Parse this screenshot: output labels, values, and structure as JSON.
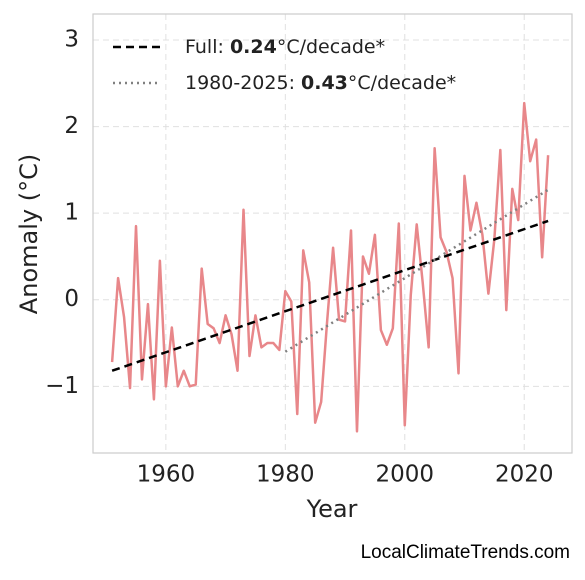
{
  "chart_data": {
    "type": "line",
    "xlabel": "Year",
    "ylabel": "Anomaly (°C)",
    "source": "LocalClimateTrends.com",
    "xlim": [
      1947.8,
      2028.0
    ],
    "ylim": [
      -1.77,
      3.3
    ],
    "xticks": [
      1960,
      1980,
      2000,
      2020
    ],
    "yticks": [
      {
        "value": -1,
        "label": "−1"
      },
      0,
      1,
      2,
      3
    ],
    "grid": true,
    "legend": "upper left",
    "x": [
      1951,
      1952,
      1953,
      1954,
      1955,
      1956,
      1957,
      1958,
      1959,
      1960,
      1961,
      1962,
      1963,
      1964,
      1965,
      1966,
      1967,
      1968,
      1969,
      1970,
      1971,
      1972,
      1973,
      1974,
      1975,
      1976,
      1977,
      1978,
      1979,
      1980,
      1981,
      1982,
      1983,
      1984,
      1985,
      1986,
      1987,
      1988,
      1989,
      1990,
      1991,
      1992,
      1993,
      1994,
      1995,
      1996,
      1997,
      1998,
      1999,
      2000,
      2001,
      2002,
      2003,
      2004,
      2005,
      2006,
      2007,
      2008,
      2009,
      2010,
      2011,
      2012,
      2013,
      2014,
      2015,
      2016,
      2017,
      2018,
      2019,
      2020,
      2021,
      2022,
      2023,
      2024
    ],
    "series": [
      {
        "color": "#e8878a",
        "values": [
          -0.72,
          0.25,
          -0.2,
          -1.02,
          0.85,
          -0.92,
          -0.05,
          -1.15,
          0.45,
          -1.0,
          -0.32,
          -1.0,
          -0.82,
          -1.0,
          -0.98,
          0.36,
          -0.28,
          -0.33,
          -0.5,
          -0.18,
          -0.4,
          -0.82,
          1.04,
          -0.65,
          -0.18,
          -0.55,
          -0.5,
          -0.5,
          -0.58,
          0.1,
          -0.02,
          -1.32,
          0.57,
          0.2,
          -1.42,
          -1.18,
          -0.25,
          0.6,
          -0.23,
          -0.25,
          0.8,
          -1.52,
          0.5,
          0.3,
          0.75,
          -0.35,
          -0.52,
          -0.33,
          0.88,
          -1.45,
          0.05,
          0.87,
          0.2,
          -0.55,
          1.75,
          0.72,
          0.55,
          0.25,
          -0.85,
          1.43,
          0.8,
          1.12,
          0.75,
          0.07,
          0.7,
          1.73,
          -0.12,
          1.28,
          0.92,
          2.27,
          1.6,
          1.85,
          0.49,
          1.67
        ]
      }
    ],
    "trends": [
      {
        "name_parts": [
          "Full: ",
          "0.24",
          "°C/decade*"
        ],
        "color": "#000000",
        "dash": "8 5",
        "x": [
          1951,
          2024
        ],
        "values": [
          -0.82,
          0.91
        ]
      },
      {
        "name_parts": [
          "1980-2025: ",
          "0.43",
          "°C/decade*"
        ],
        "color": "#808080",
        "dash": "2 4",
        "x": [
          1980,
          2024
        ],
        "values": [
          -0.6,
          1.27
        ]
      }
    ]
  }
}
